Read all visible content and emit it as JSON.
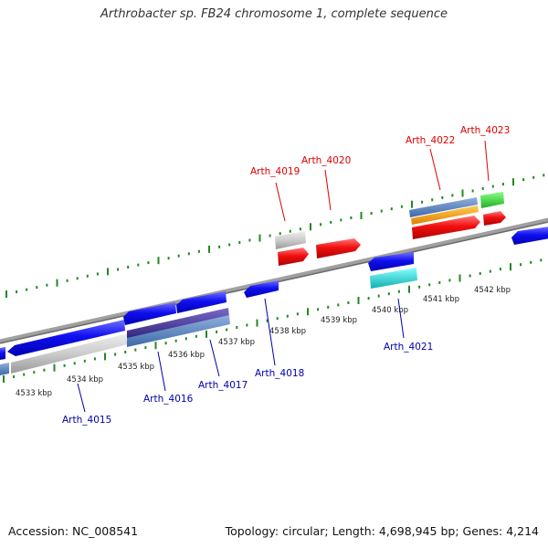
{
  "title": "Arthrobacter sp. FB24 chromosome 1, complete sequence",
  "footer": {
    "accession": "Accession: NC_008541",
    "summary": "Topology: circular; Length: 4,698,945 bp; Genes: 4,214"
  },
  "colors": {
    "forward_label": "#dd0000",
    "reverse_label": "#0000aa",
    "backbone": "#808080",
    "tick": "#228822"
  },
  "axis_labels": [
    "4533 kbp",
    "4534 kbp",
    "4535 kbp",
    "4536 kbp",
    "4537 kbp",
    "4538 kbp",
    "4539 kbp",
    "4540 kbp",
    "4541 kbp",
    "4542 kbp"
  ],
  "forward_labels": [
    "Arth_4019",
    "Arth_4020",
    "Arth_4022",
    "Arth_4023"
  ],
  "reverse_labels": [
    "Arth_4015",
    "Arth_4016",
    "Arth_4017",
    "Arth_4018",
    "Arth_4021"
  ]
}
